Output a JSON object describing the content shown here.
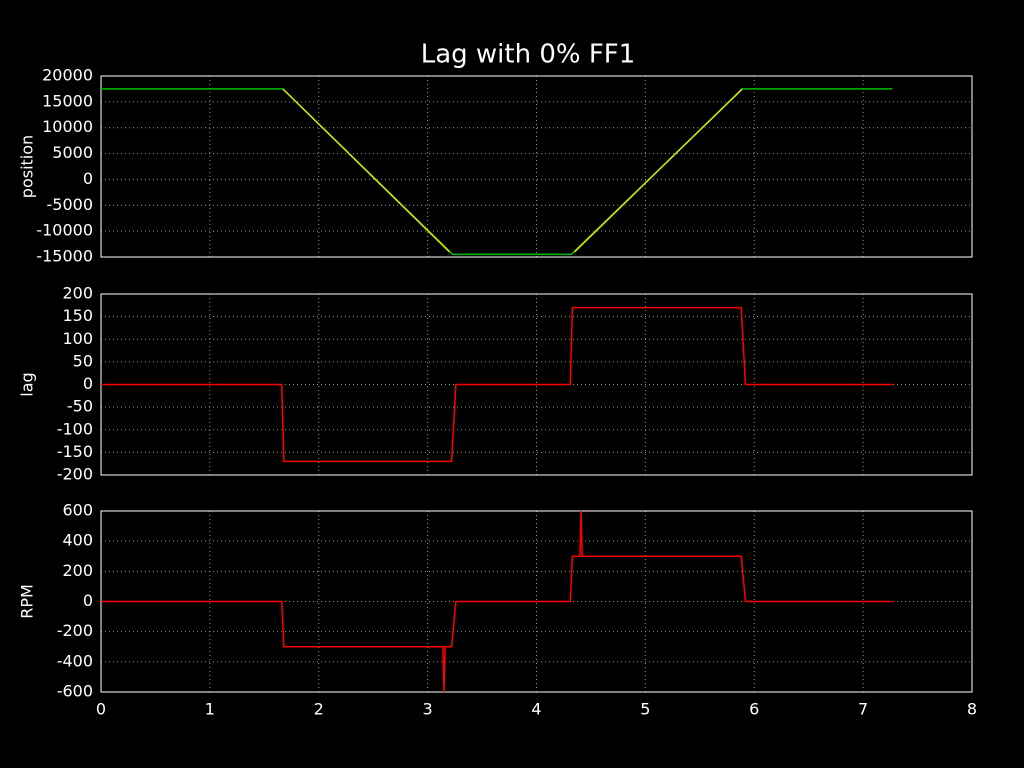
{
  "chart_data": [
    {
      "type": "line",
      "title": "Lag with 0% FF1",
      "ylabel": "position",
      "xlim": [
        0,
        8
      ],
      "xticks": [
        0,
        1,
        2,
        3,
        4,
        5,
        6,
        7,
        8
      ],
      "ylim": [
        -15000,
        20000
      ],
      "yticks": [
        -15000,
        -10000,
        -5000,
        0,
        5000,
        10000,
        15000,
        20000
      ],
      "grid": true,
      "series": [
        {
          "color": "#00c000",
          "x": [
            0,
            1.67,
            3.23,
            4.32,
            5.89,
            7.27
          ],
          "values": [
            17500,
            17500,
            -14500,
            -14500,
            17500,
            17500
          ]
        },
        {
          "color": "#e0e000",
          "x": [
            1.67,
            3.2,
            null,
            4.35,
            5.89
          ],
          "values": [
            17500,
            -14000,
            null,
            -14000,
            17500
          ]
        }
      ]
    },
    {
      "type": "line",
      "ylabel": "lag",
      "xlim": [
        0,
        8
      ],
      "xticks": [
        0,
        1,
        2,
        3,
        4,
        5,
        6,
        7,
        8
      ],
      "ylim": [
        -200,
        200
      ],
      "yticks": [
        -200,
        -150,
        -100,
        -50,
        0,
        50,
        100,
        150,
        200
      ],
      "grid": true,
      "series": [
        {
          "color": "#ff0000",
          "x": [
            0,
            1.66,
            1.68,
            3.22,
            3.26,
            4.31,
            4.33,
            5.88,
            5.92,
            7.27
          ],
          "values": [
            0,
            0,
            -170,
            -170,
            0,
            0,
            170,
            170,
            0,
            0
          ]
        }
      ]
    },
    {
      "type": "line",
      "ylabel": "RPM",
      "xlim": [
        0,
        8
      ],
      "xticks": [
        0,
        1,
        2,
        3,
        4,
        5,
        6,
        7,
        8
      ],
      "ylim": [
        -600,
        600
      ],
      "yticks": [
        -600,
        -400,
        -200,
        0,
        200,
        400,
        600
      ],
      "grid": true,
      "series": [
        {
          "color": "#ff0000",
          "x": [
            0,
            1.66,
            1.68,
            3.14,
            3.15,
            3.16,
            3.22,
            3.26,
            4.31,
            4.33,
            4.4,
            4.41,
            4.42,
            5.88,
            5.92,
            7.27
          ],
          "values": [
            0,
            0,
            -300,
            -300,
            -600,
            -300,
            -300,
            0,
            0,
            300,
            300,
            600,
            300,
            300,
            0,
            0
          ]
        }
      ]
    }
  ]
}
